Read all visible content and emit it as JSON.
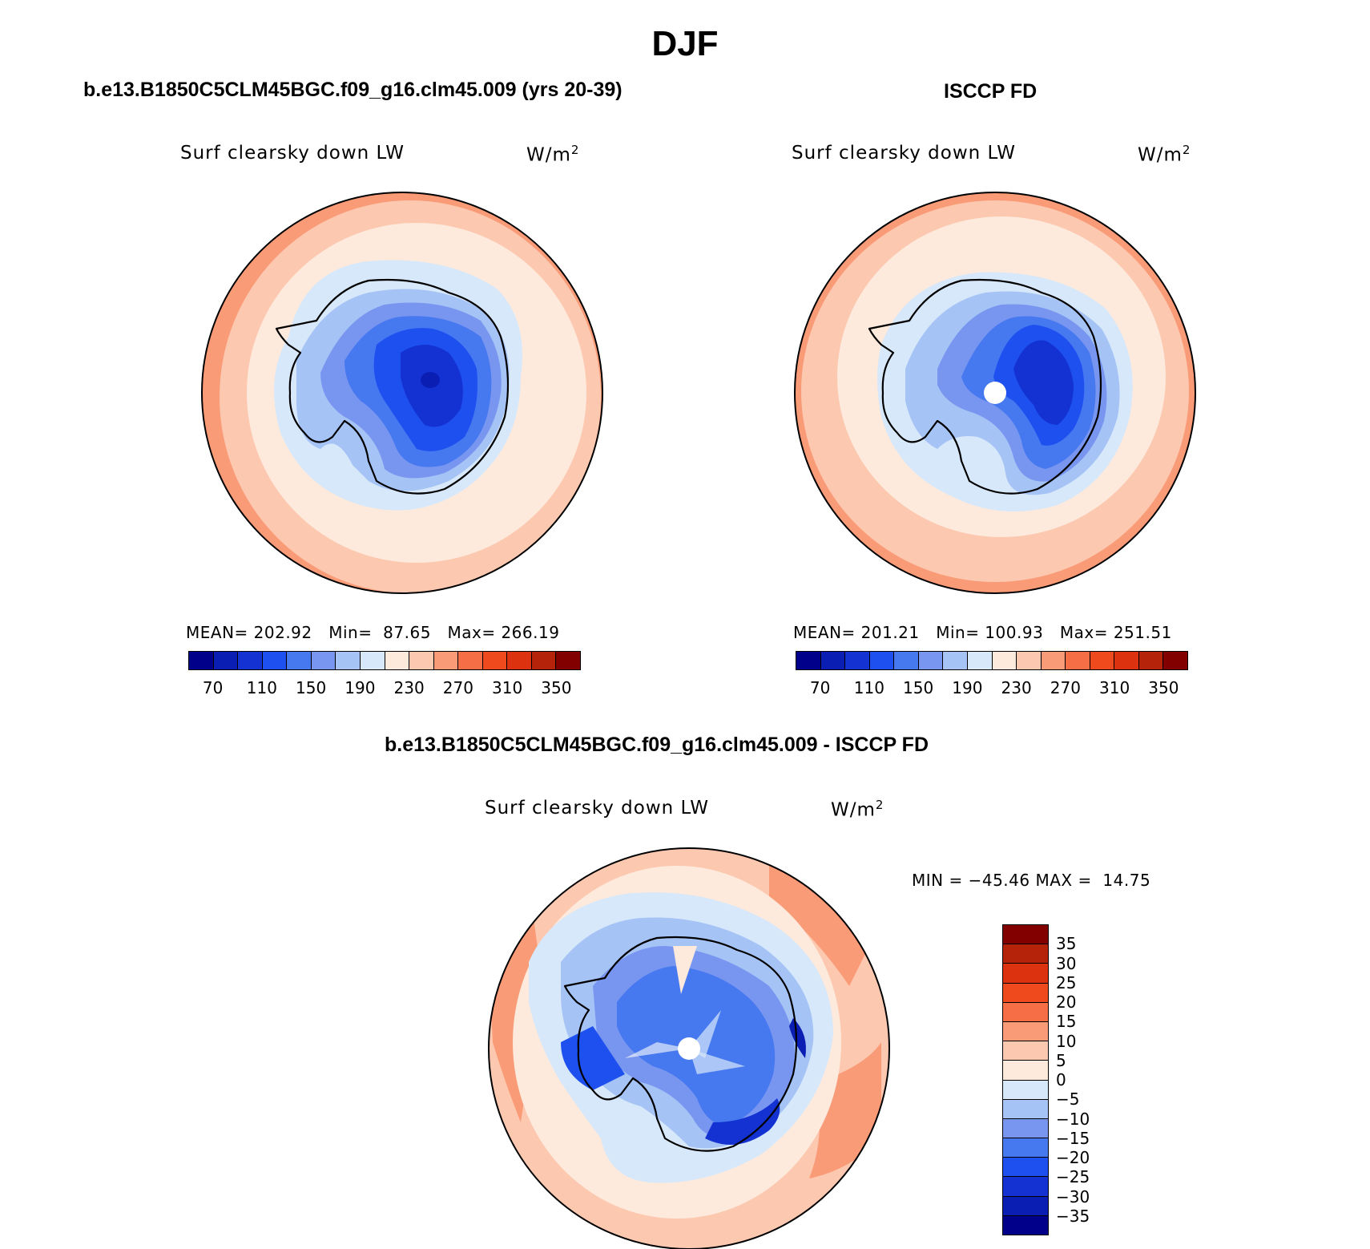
{
  "page": {
    "title": "DJF"
  },
  "panels": [
    {
      "id": "model",
      "title": "b.e13.B1850C5CLM45BGC.f09_g16.clm45.009 (yrs 20-39)",
      "variable": "Surf clearsky down LW",
      "units": "W/m",
      "units_sup": "2",
      "stats": "MEAN= 202.92   Min=  87.65   Max= 266.19",
      "mean": 202.92,
      "min": 87.65,
      "max": 266.19,
      "pole_hole": false
    },
    {
      "id": "obs",
      "title": "ISCCP FD",
      "variable": "Surf clearsky down LW",
      "units": "W/m",
      "units_sup": "2",
      "stats": "MEAN= 201.21   Min= 100.93   Max= 251.51",
      "mean": 201.21,
      "min": 100.93,
      "max": 251.51,
      "pole_hole": true
    },
    {
      "id": "diff",
      "title": "b.e13.B1850C5CLM45BGC.f09_g16.clm45.009 - ISCCP FD",
      "variable": "Surf clearsky down LW",
      "units": "W/m",
      "units_sup": "2",
      "stats": "MIN = −45.46 MAX =  14.75",
      "min": -45.46,
      "max": 14.75,
      "pole_hole": true
    }
  ],
  "colorbar_abs": {
    "colors": [
      "#00008b",
      "#0a1eb4",
      "#1432d2",
      "#1e50f0",
      "#4678f0",
      "#7896f0",
      "#a5c3f5",
      "#d7e8fa",
      "#fdeadc",
      "#fcc8b0",
      "#fa9b78",
      "#f56e46",
      "#ee4a1e",
      "#dc320f",
      "#b4230a",
      "#820000"
    ],
    "ticks": [
      "70",
      "110",
      "150",
      "190",
      "230",
      "270",
      "310",
      "350"
    ]
  },
  "colorbar_diff": {
    "colors": [
      "#00008b",
      "#0a1eb4",
      "#1432d2",
      "#1e50f0",
      "#4678f0",
      "#7896f0",
      "#a5c3f5",
      "#d7e8fa",
      "#fdeadc",
      "#fcc8b0",
      "#fa9b78",
      "#f56e46",
      "#ee4a1e",
      "#dc320f",
      "#b4230a",
      "#820000"
    ],
    "ticks": [
      "35",
      "30",
      "25",
      "20",
      "15",
      "10",
      "5",
      "0",
      "−5",
      "−10",
      "−15",
      "−20",
      "−25",
      "−30",
      "−35"
    ]
  },
  "map_colors": {
    "warm_outer": "#fa9b78",
    "warm_mid": "#fcc8b0",
    "cream": "#fdeadc",
    "pale_blue": "#d7e8fa",
    "light_blue": "#a5c3f5",
    "mid_blue": "#7896f0",
    "blue": "#4678f0",
    "strong_blue": "#1e50f0",
    "deep_blue": "#1432d2",
    "navy": "#0a1eb4"
  }
}
